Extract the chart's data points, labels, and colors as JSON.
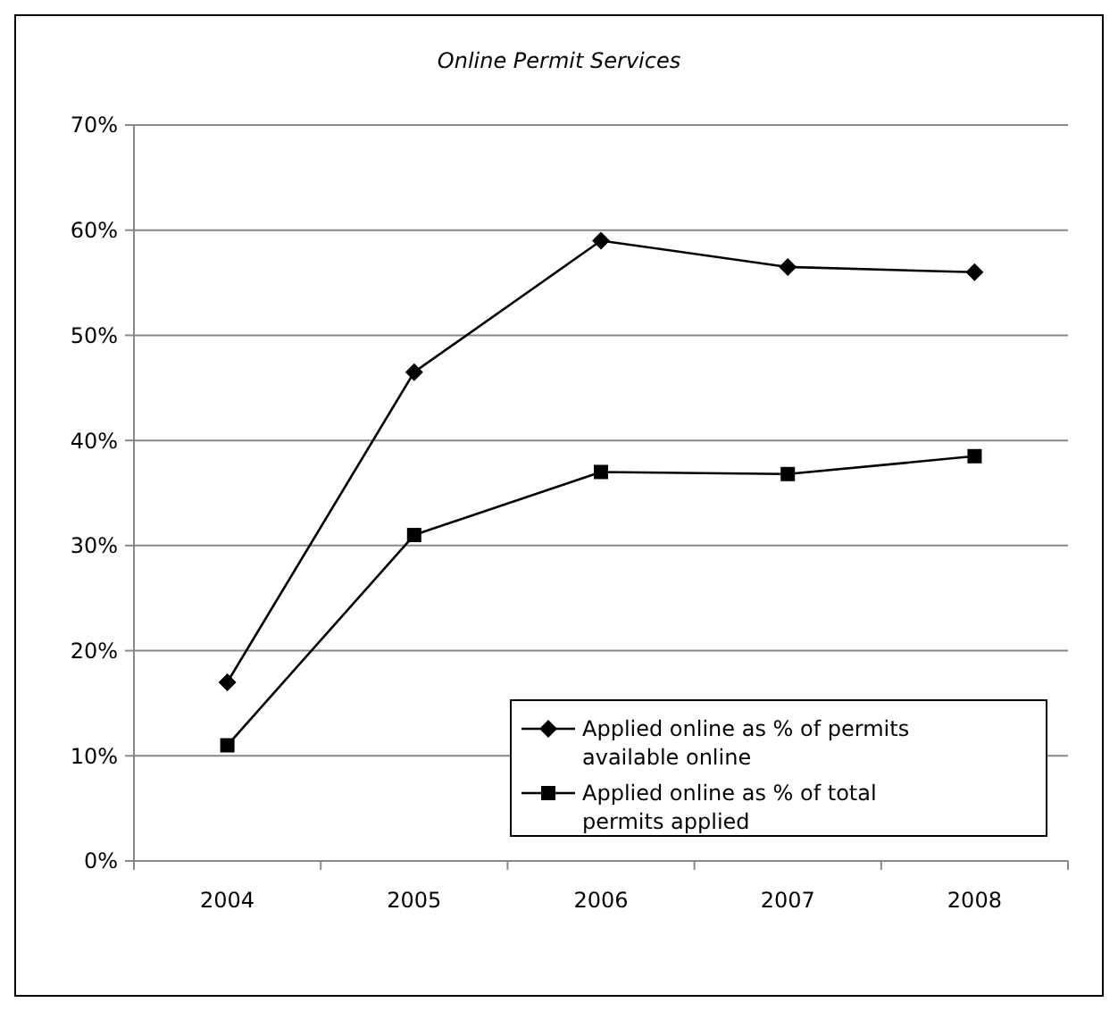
{
  "chart_data": {
    "type": "line",
    "title": "Online Permit Services",
    "categories": [
      "2004",
      "2005",
      "2006",
      "2007",
      "2008"
    ],
    "series": [
      {
        "name": "Applied online as % of permits available online",
        "color": "#000000",
        "marker": "diamond",
        "values": [
          0.17,
          0.465,
          0.59,
          0.565,
          0.56
        ]
      },
      {
        "name": "Applied online as % of total permits applied",
        "color": "#000000",
        "marker": "square",
        "values": [
          0.11,
          0.31,
          0.37,
          0.368,
          0.385
        ]
      }
    ],
    "ylim": [
      0,
      0.7
    ],
    "yticks": [
      {
        "value": 0,
        "label": "0%"
      },
      {
        "value": 0.1,
        "label": "10%"
      },
      {
        "value": 0.2,
        "label": "20%"
      },
      {
        "value": 0.3,
        "label": "30%"
      },
      {
        "value": 0.4,
        "label": "40%"
      },
      {
        "value": 0.5,
        "label": "50%"
      },
      {
        "value": 0.6,
        "label": "60%"
      },
      {
        "value": 0.7,
        "label": "70%"
      }
    ],
    "grid": "y",
    "legend": "bottom right",
    "line_style": "solid"
  }
}
